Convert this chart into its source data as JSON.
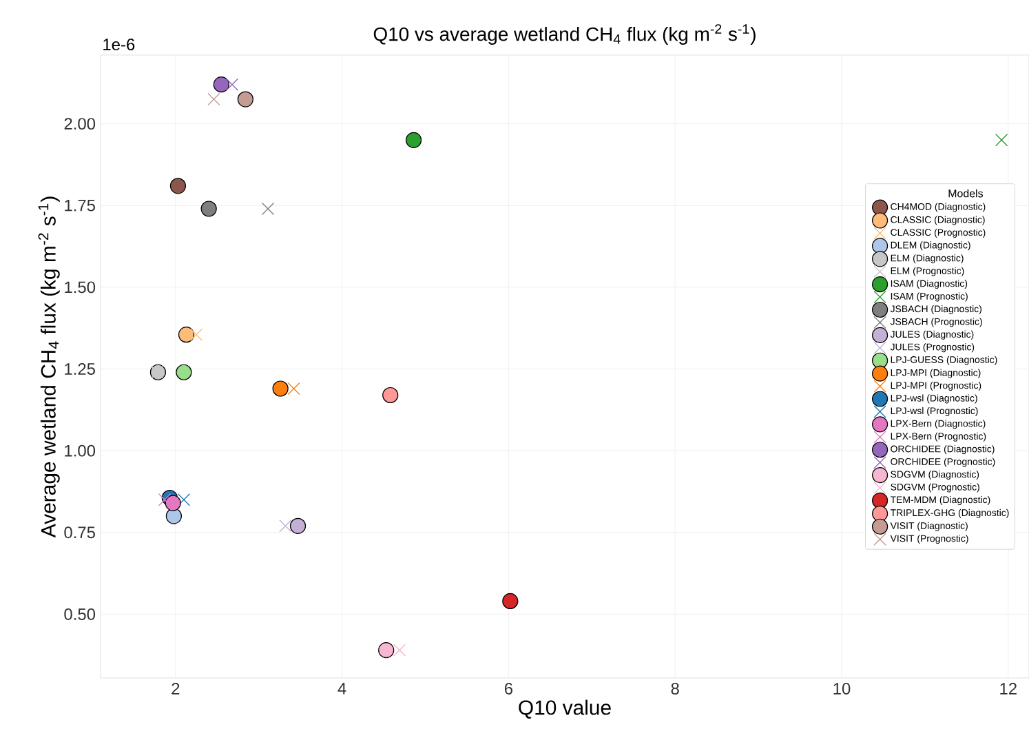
{
  "chart_data": {
    "type": "scatter",
    "title": "Q10 vs average wetland CH$_{4}$ flux (kg m$^{-2}$ s$^{-1}$)",
    "xlabel": "Q10 value",
    "ylabel": "Average wetland CH$_{4}$ flux (kg m$^{-2}$ s$^{-1}$)",
    "legend_title": "Models",
    "annotations": [
      "1e-6"
    ],
    "xlim": [
      1.1,
      12.25
    ],
    "ylim": [
      0.305,
      2.21
    ],
    "xticks": [
      2,
      4,
      6,
      8,
      10,
      12
    ],
    "yticks": [
      {
        "value": 0.5,
        "label": "0.50"
      },
      {
        "value": 0.75,
        "label": "0.75"
      },
      {
        "value": 1.0,
        "label": "1.00"
      },
      {
        "value": 1.25,
        "label": "1.25"
      },
      {
        "value": 1.5,
        "label": "1.50"
      },
      {
        "value": 1.75,
        "label": "1.75"
      },
      {
        "value": 2.0,
        "label": "2.00"
      }
    ],
    "grid": true,
    "legend": "right",
    "series": [
      {
        "name": "CH4MOD (Diagnostic)",
        "color": "#8c564b",
        "marker": "circle",
        "x": [
          2.03
        ],
        "values": [
          1.81
        ]
      },
      {
        "name": "CLASSIC (Diagnostic)",
        "color": "#ffbb78",
        "marker": "circle",
        "x": [
          2.13
        ],
        "values": [
          1.355
        ]
      },
      {
        "name": "CLASSIC (Prognostic)",
        "color": "#ffbb78",
        "marker": "cross",
        "x": [
          2.25
        ],
        "values": [
          1.355
        ]
      },
      {
        "name": "DLEM (Diagnostic)",
        "color": "#aec7e8",
        "marker": "circle",
        "x": [
          1.98
        ],
        "values": [
          0.8
        ]
      },
      {
        "name": "ELM (Diagnostic)",
        "color": "#c7c7c7",
        "marker": "circle",
        "x": [
          1.79
        ],
        "values": [
          1.24
        ]
      },
      {
        "name": "ELM (Prognostic)",
        "color": "#c7c7c7",
        "marker": "cross",
        "x": [
          1.78
        ],
        "values": [
          1.24
        ]
      },
      {
        "name": "ISAM (Diagnostic)",
        "color": "#2ca02c",
        "marker": "circle",
        "x": [
          4.86
        ],
        "values": [
          1.95
        ]
      },
      {
        "name": "ISAM (Prognostic)",
        "color": "#2ca02c",
        "marker": "cross",
        "x": [
          11.92
        ],
        "values": [
          1.95
        ]
      },
      {
        "name": "JSBACH (Diagnostic)",
        "color": "#7f7f7f",
        "marker": "circle",
        "x": [
          2.4
        ],
        "values": [
          1.74
        ]
      },
      {
        "name": "JSBACH (Prognostic)",
        "color": "#7f7f7f",
        "marker": "cross",
        "x": [
          3.11
        ],
        "values": [
          1.74
        ]
      },
      {
        "name": "JULES (Diagnostic)",
        "color": "#c5b0d5",
        "marker": "circle",
        "x": [
          3.47
        ],
        "values": [
          0.77
        ]
      },
      {
        "name": "JULES (Prognostic)",
        "color": "#c5b0d5",
        "marker": "cross",
        "x": [
          3.32
        ],
        "values": [
          0.77
        ]
      },
      {
        "name": "LPJ-GUESS (Diagnostic)",
        "color": "#98df8a",
        "marker": "circle",
        "x": [
          2.1
        ],
        "values": [
          1.24
        ]
      },
      {
        "name": "LPJ-MPI (Diagnostic)",
        "color": "#ff7f0e",
        "marker": "circle",
        "x": [
          3.26
        ],
        "values": [
          1.19
        ]
      },
      {
        "name": "LPJ-MPI (Prognostic)",
        "color": "#ff7f0e",
        "marker": "cross",
        "x": [
          3.42
        ],
        "values": [
          1.19
        ]
      },
      {
        "name": "LPJ-wsl (Diagnostic)",
        "color": "#1f77b4",
        "marker": "circle",
        "x": [
          1.93
        ],
        "values": [
          0.856
        ]
      },
      {
        "name": "LPJ-wsl (Prognostic)",
        "color": "#1f77b4",
        "marker": "cross",
        "x": [
          2.1
        ],
        "values": [
          0.85
        ]
      },
      {
        "name": "LPX-Bern (Diagnostic)",
        "color": "#e377c2",
        "marker": "circle",
        "x": [
          1.97
        ],
        "values": [
          0.84
        ]
      },
      {
        "name": "LPX-Bern (Prognostic)",
        "color": "#e377c2",
        "marker": "cross",
        "x": [
          1.87
        ],
        "values": [
          0.85
        ]
      },
      {
        "name": "ORCHIDEE (Diagnostic)",
        "color": "#9467bd",
        "marker": "circle",
        "x": [
          2.55
        ],
        "values": [
          2.12
        ]
      },
      {
        "name": "ORCHIDEE (Prognostic)",
        "color": "#9467bd",
        "marker": "cross",
        "x": [
          2.68
        ],
        "values": [
          2.12
        ]
      },
      {
        "name": "SDGVM (Diagnostic)",
        "color": "#f7b6d2",
        "marker": "circle",
        "x": [
          4.53
        ],
        "values": [
          0.39
        ]
      },
      {
        "name": "SDGVM (Prognostic)",
        "color": "#f7b6d2",
        "marker": "cross",
        "x": [
          4.69
        ],
        "values": [
          0.39
        ]
      },
      {
        "name": "TEM-MDM (Diagnostic)",
        "color": "#d62728",
        "marker": "circle",
        "x": [
          6.02
        ],
        "values": [
          0.54
        ]
      },
      {
        "name": "TRIPLEX-GHG (Diagnostic)",
        "color": "#ff9896",
        "marker": "circle",
        "x": [
          4.58
        ],
        "values": [
          1.17
        ]
      },
      {
        "name": "VISIT (Diagnostic)",
        "color": "#c49c94",
        "marker": "circle",
        "x": [
          2.84
        ],
        "values": [
          2.075
        ]
      },
      {
        "name": "VISIT (Prognostic)",
        "color": "#c49c94",
        "marker": "cross",
        "x": [
          2.46
        ],
        "values": [
          2.075
        ]
      }
    ]
  }
}
